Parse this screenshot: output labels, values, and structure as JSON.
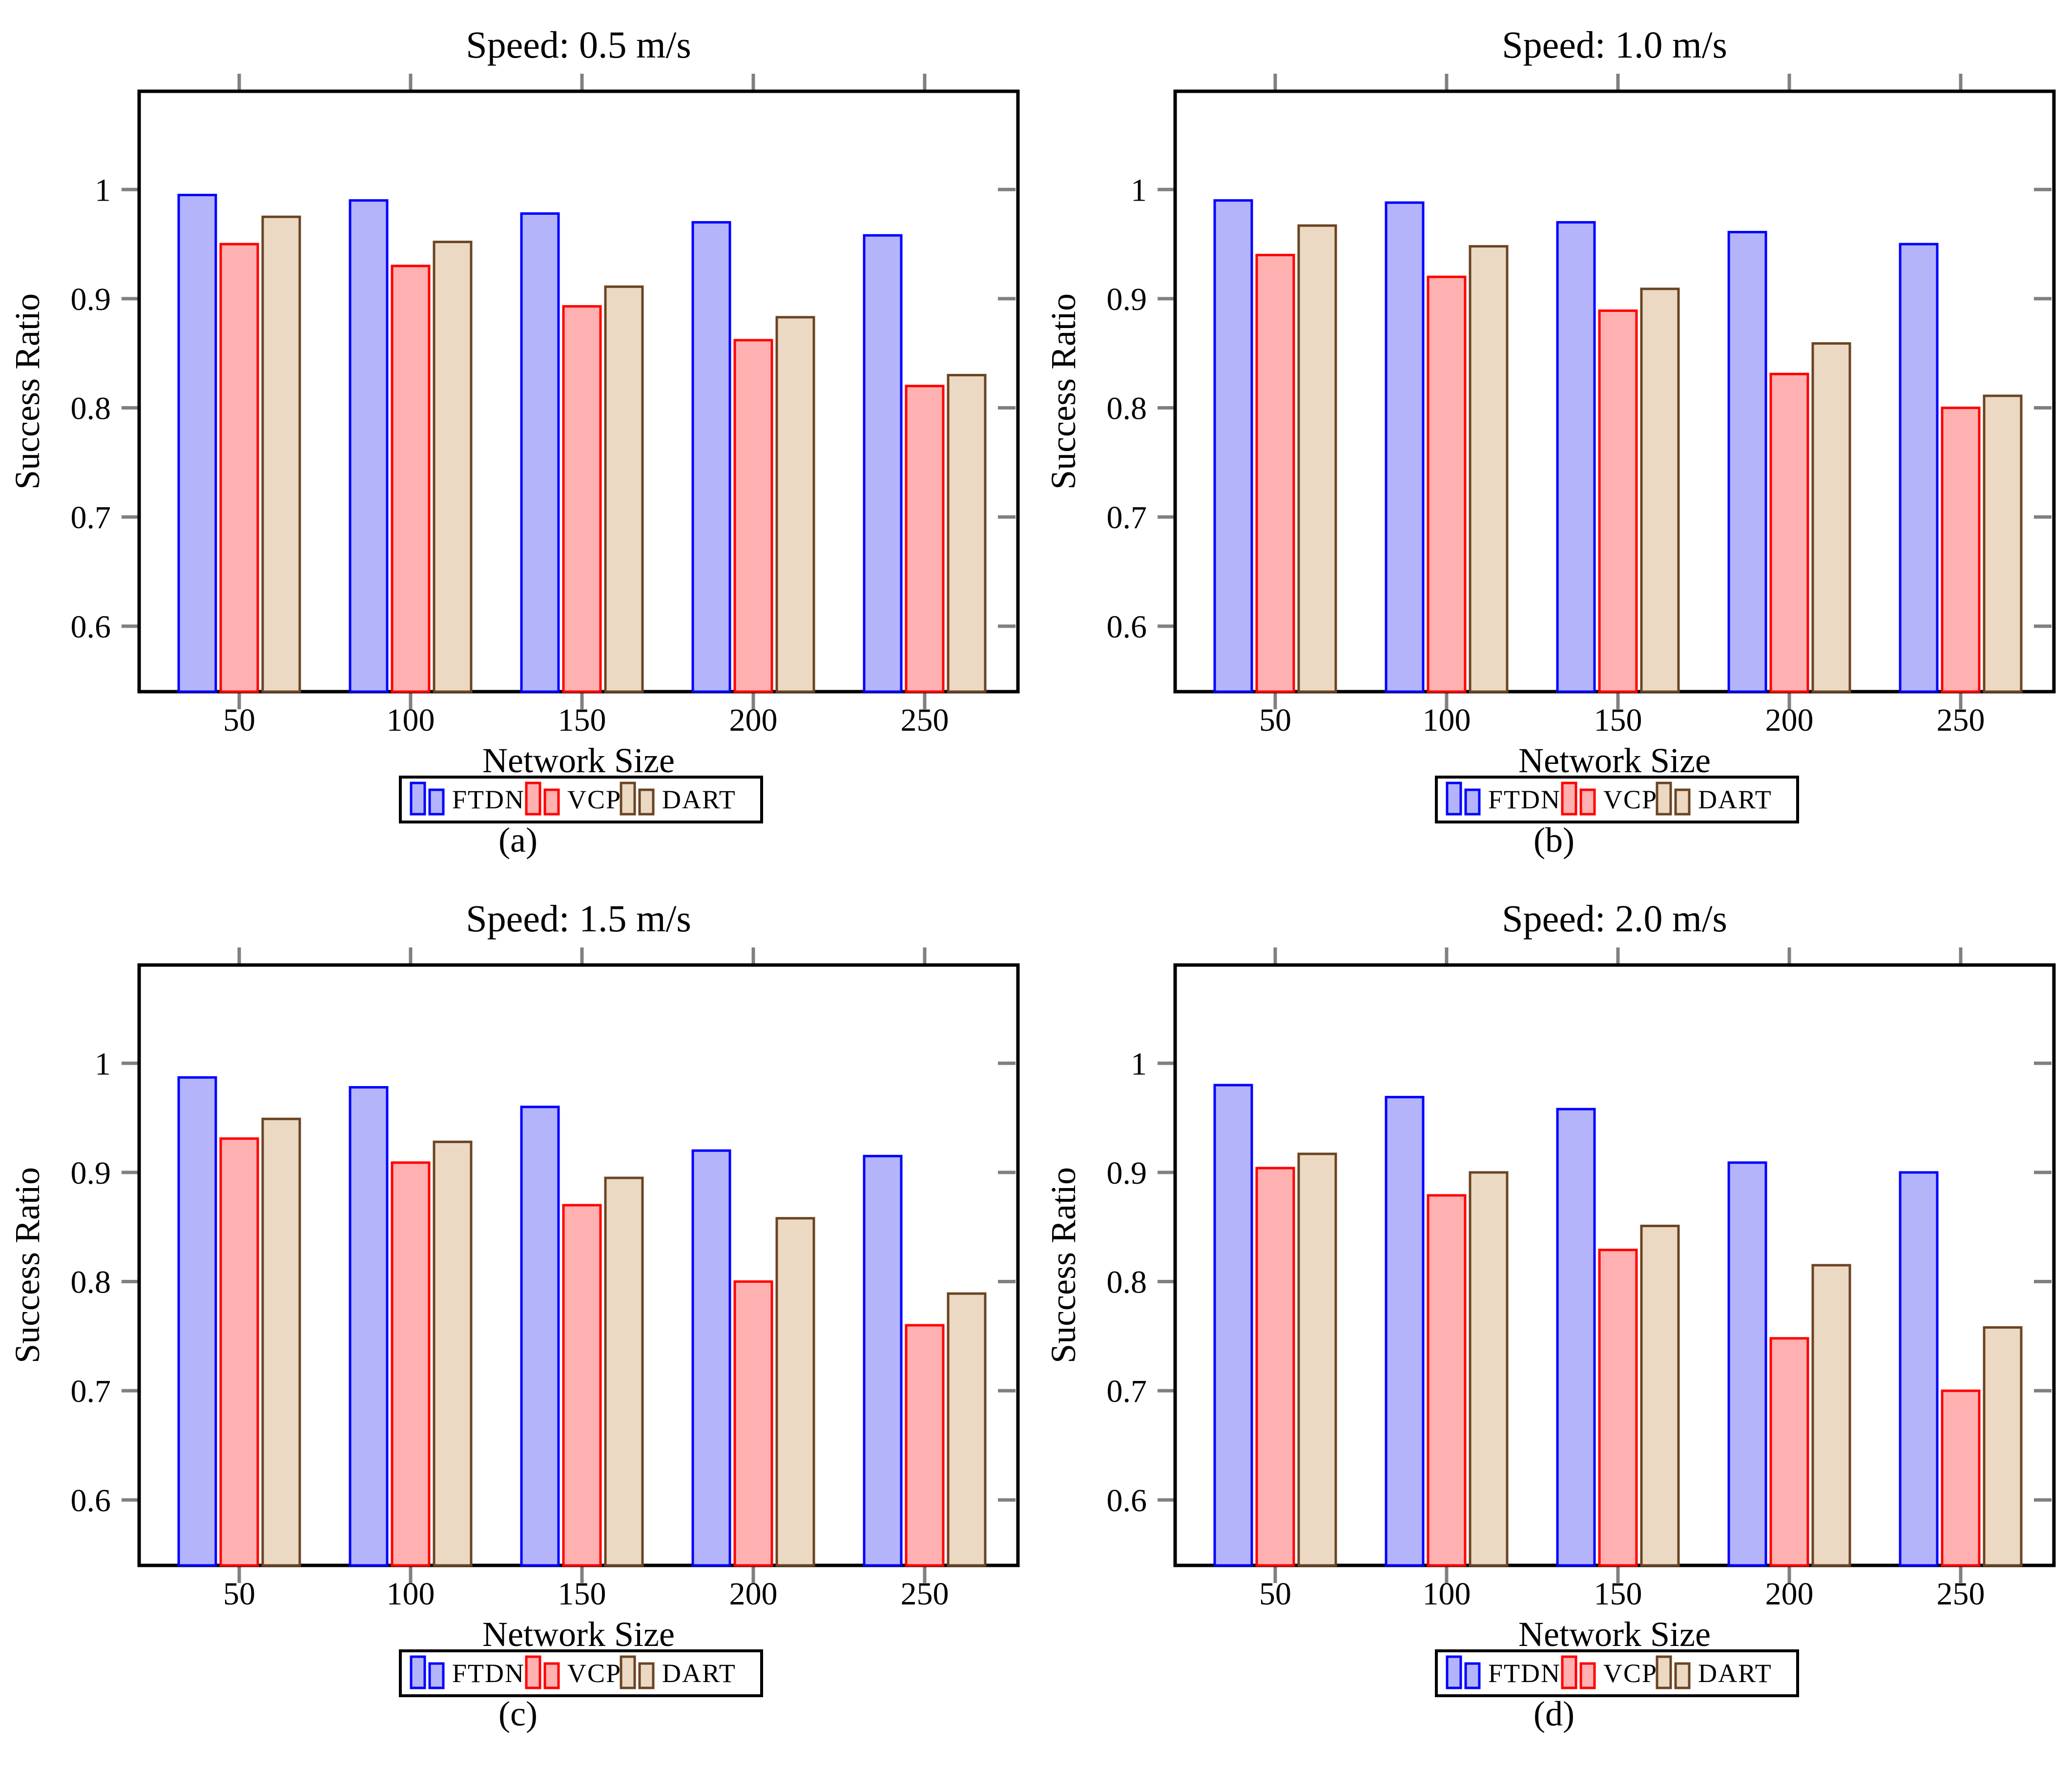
{
  "style": {
    "colors": {
      "ftdn_fill": "#B4B4FB",
      "ftdn_stroke": "#0000FF",
      "vcp_fill": "#FFB1B1",
      "vcp_stroke": "#FF0000",
      "dart_fill": "#EBD9C3",
      "dart_stroke": "#6B4423",
      "tick": "#808080",
      "axis": "#000000",
      "background": "#FFFFFF"
    }
  },
  "chart_data": [
    {
      "type": "bar",
      "title": "Speed: 0.5 m/s",
      "caption": "(a)",
      "xlabel": "Network Size",
      "ylabel": "Success Ratio",
      "categories": [
        50,
        100,
        150,
        200,
        250
      ],
      "yticks": [
        1,
        0.9,
        0.8,
        0.7,
        0.6
      ],
      "ylim": [
        0.54,
        1.09
      ],
      "grid": false,
      "legend_position": "below",
      "series": [
        {
          "name": "FTDN",
          "values": [
            0.995,
            0.99,
            0.978,
            0.97,
            0.958
          ]
        },
        {
          "name": "VCP",
          "values": [
            0.95,
            0.93,
            0.893,
            0.862,
            0.82
          ]
        },
        {
          "name": "DART",
          "values": [
            0.975,
            0.952,
            0.911,
            0.883,
            0.83
          ]
        }
      ]
    },
    {
      "type": "bar",
      "title": "Speed: 1.0 m/s",
      "caption": "(b)",
      "xlabel": "Network Size",
      "ylabel": "Success Ratio",
      "categories": [
        50,
        100,
        150,
        200,
        250
      ],
      "yticks": [
        1,
        0.9,
        0.8,
        0.7,
        0.6
      ],
      "ylim": [
        0.54,
        1.09
      ],
      "grid": false,
      "legend_position": "below",
      "series": [
        {
          "name": "FTDN",
          "values": [
            0.99,
            0.988,
            0.97,
            0.961,
            0.95
          ]
        },
        {
          "name": "VCP",
          "values": [
            0.94,
            0.92,
            0.889,
            0.831,
            0.8
          ]
        },
        {
          "name": "DART",
          "values": [
            0.967,
            0.948,
            0.909,
            0.859,
            0.811
          ]
        }
      ]
    },
    {
      "type": "bar",
      "title": "Speed: 1.5 m/s",
      "caption": "(c)",
      "xlabel": "Network Size",
      "ylabel": "Success Ratio",
      "categories": [
        50,
        100,
        150,
        200,
        250
      ],
      "yticks": [
        1,
        0.9,
        0.8,
        0.7,
        0.6
      ],
      "ylim": [
        0.54,
        1.09
      ],
      "grid": false,
      "legend_position": "below",
      "series": [
        {
          "name": "FTDN",
          "values": [
            0.987,
            0.978,
            0.96,
            0.92,
            0.915
          ]
        },
        {
          "name": "VCP",
          "values": [
            0.931,
            0.909,
            0.87,
            0.8,
            0.76
          ]
        },
        {
          "name": "DART",
          "values": [
            0.949,
            0.928,
            0.895,
            0.858,
            0.789
          ]
        }
      ]
    },
    {
      "type": "bar",
      "title": "Speed: 2.0 m/s",
      "caption": "(d)",
      "xlabel": "Network Size",
      "ylabel": "Success Ratio",
      "categories": [
        50,
        100,
        150,
        200,
        250
      ],
      "yticks": [
        1,
        0.9,
        0.8,
        0.7,
        0.6
      ],
      "ylim": [
        0.54,
        1.09
      ],
      "grid": false,
      "legend_position": "below",
      "series": [
        {
          "name": "FTDN",
          "values": [
            0.98,
            0.969,
            0.958,
            0.909,
            0.9
          ]
        },
        {
          "name": "VCP",
          "values": [
            0.904,
            0.879,
            0.829,
            0.748,
            0.7
          ]
        },
        {
          "name": "DART",
          "values": [
            0.917,
            0.9,
            0.851,
            0.815,
            0.758
          ]
        }
      ]
    }
  ]
}
